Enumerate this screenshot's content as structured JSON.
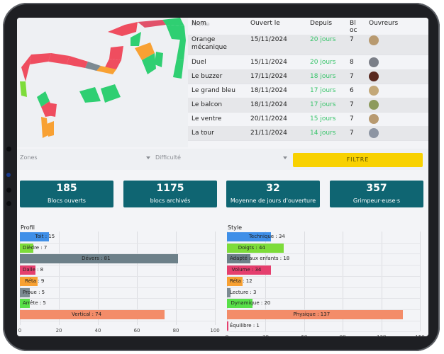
{
  "table": {
    "headers": [
      "Nom",
      "Ouvert le",
      "Depuis",
      "Bloc s",
      "Ouvreurs"
    ],
    "partial_top": "Arche",
    "rows": [
      {
        "name": "Orange mécanique",
        "date": "15/11/2024",
        "since": "20 jours",
        "blocs": "7"
      },
      {
        "name": "Duel",
        "date": "15/11/2024",
        "since": "20 jours",
        "blocs": "8"
      },
      {
        "name": "Le buzzer",
        "date": "17/11/2024",
        "since": "18 jours",
        "blocs": "7"
      },
      {
        "name": "Le grand bleu",
        "date": "18/11/2024",
        "since": "17 jours",
        "blocs": "6"
      },
      {
        "name": "Le balcon",
        "date": "18/11/2024",
        "since": "17 jours",
        "blocs": "7"
      },
      {
        "name": "Le ventre",
        "date": "20/11/2024",
        "since": "15 jours",
        "blocs": "7"
      },
      {
        "name": "La tour",
        "date": "21/11/2024",
        "since": "14 jours",
        "blocs": "7"
      }
    ]
  },
  "filters": {
    "zones": "Zones",
    "difficulty": "Difficulté",
    "button": "FILTRE"
  },
  "stats": [
    {
      "value": "185",
      "label": "Blocs ouverts"
    },
    {
      "value": "1175",
      "label": "blocs archivés"
    },
    {
      "value": "32",
      "label": "Moyenne de jours d'ouverture"
    },
    {
      "value": "357",
      "label": "Grimpeur·euse·s"
    }
  ],
  "chart_data": [
    {
      "type": "bar",
      "title": "Profil",
      "categories": [
        "Toit",
        "Dièdre",
        "Dévers",
        "Dalle",
        "Réta",
        "Proue",
        "Arrête",
        "Vertical"
      ],
      "values": [
        15,
        7,
        81,
        8,
        9,
        5,
        5,
        74
      ],
      "colors": [
        "#3f8fe8",
        "#7ddc3a",
        "#6d8089",
        "#e53f6e",
        "#f8a133",
        "#7d8b93",
        "#58e04a",
        "#f38c69"
      ],
      "xlim": [
        0,
        100
      ],
      "xticks": [
        "0",
        "20",
        "40",
        "60",
        "80",
        "100"
      ]
    },
    {
      "type": "bar",
      "title": "Style",
      "categories": [
        "Technique",
        "Doigts",
        "Adapté aux enfants",
        "Volume",
        "Réta",
        "Lecture",
        "Dynamique",
        "Physique",
        "Équilibre"
      ],
      "values": [
        34,
        44,
        18,
        34,
        12,
        3,
        20,
        137,
        1
      ],
      "colors": [
        "#3f8fe8",
        "#7ddc3a",
        "#6d8089",
        "#e53f6e",
        "#f8a133",
        "#7d8b93",
        "#58e04a",
        "#f38c69",
        "#e53f6e"
      ],
      "xlim": [
        0,
        150
      ],
      "xticks": [
        "0",
        "30",
        "60",
        "90",
        "120",
        "150"
      ]
    }
  ]
}
